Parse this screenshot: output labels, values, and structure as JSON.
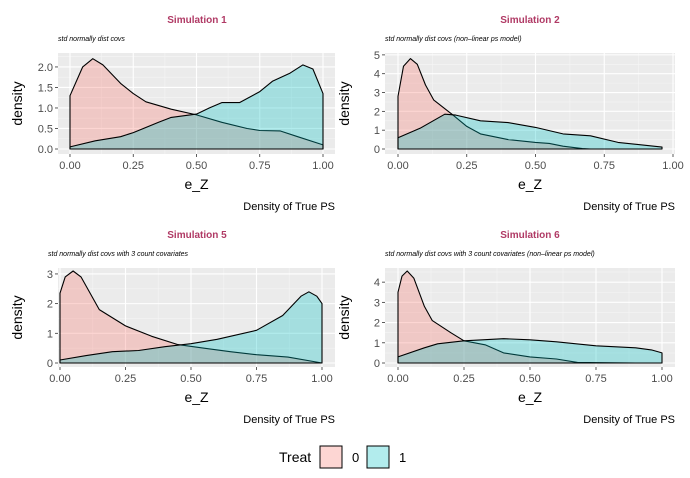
{
  "chart_data": [
    {
      "type": "area",
      "title": "Simulation 1",
      "subtitle": "std normally dist covs",
      "xlabel": "e_Z",
      "ylabel": "density",
      "caption": "Density of True PS",
      "xlim": [
        0,
        1
      ],
      "ylim": [
        0,
        2.34
      ],
      "xticks": [
        "0.00",
        "0.25",
        "0.50",
        "0.75",
        "1.00"
      ],
      "yticks": [
        "0.0",
        "0.5",
        "1.0",
        "1.5",
        "2.0"
      ],
      "ytick_values": [
        0,
        0.5,
        1,
        1.5,
        2
      ],
      "grid": true,
      "series": [
        {
          "name": "0",
          "x": [
            0,
            0.05,
            0.09,
            0.13,
            0.2,
            0.25,
            0.3,
            0.4,
            0.5,
            0.6,
            0.7,
            0.75,
            0.83,
            0.9,
            1.0
          ],
          "y": [
            1.3,
            2.0,
            2.2,
            2.05,
            1.6,
            1.35,
            1.15,
            0.97,
            0.83,
            0.65,
            0.5,
            0.45,
            0.44,
            0.3,
            0.1
          ]
        },
        {
          "name": "1",
          "x": [
            0,
            0.1,
            0.2,
            0.25,
            0.35,
            0.4,
            0.5,
            0.55,
            0.6,
            0.67,
            0.75,
            0.8,
            0.87,
            0.92,
            0.96,
            1.0
          ],
          "y": [
            0.05,
            0.2,
            0.3,
            0.4,
            0.65,
            0.77,
            0.85,
            1.0,
            1.13,
            1.13,
            1.4,
            1.65,
            1.85,
            2.05,
            1.95,
            1.35
          ]
        }
      ]
    },
    {
      "type": "area",
      "title": "Simulation 2",
      "subtitle": "std normally dist covs (non–linear ps model)",
      "xlabel": "e_Z",
      "ylabel": "density",
      "caption": "Density of True PS",
      "xlim": [
        0,
        1
      ],
      "ylim": [
        0,
        5.1
      ],
      "xticks": [
        "0.00",
        "0.25",
        "0.50",
        "0.75",
        "1.00"
      ],
      "yticks": [
        "0",
        "1",
        "2",
        "3",
        "4",
        "5"
      ],
      "ytick_values": [
        0,
        1,
        2,
        3,
        4,
        5
      ],
      "grid": true,
      "series": [
        {
          "name": "0",
          "x": [
            0,
            0.02,
            0.045,
            0.07,
            0.1,
            0.13,
            0.2,
            0.25,
            0.3,
            0.4,
            0.5,
            0.55,
            0.6,
            0.67,
            0.7
          ],
          "y": [
            2.8,
            4.4,
            4.8,
            4.5,
            3.4,
            2.6,
            1.8,
            1.2,
            0.8,
            0.5,
            0.35,
            0.3,
            0.15,
            0.02,
            0
          ]
        },
        {
          "name": "1",
          "x": [
            0,
            0.08,
            0.17,
            0.21,
            0.3,
            0.4,
            0.5,
            0.6,
            0.7,
            0.8,
            0.96
          ],
          "y": [
            0.6,
            1.1,
            1.85,
            1.8,
            1.5,
            1.4,
            1.15,
            0.8,
            0.7,
            0.35,
            0.1
          ]
        }
      ]
    },
    {
      "type": "area",
      "title": "Simulation 5",
      "subtitle": "std normally dist covs with 3 count covariates",
      "xlabel": "e_Z",
      "ylabel": "density",
      "caption": "Density of True PS",
      "xlim": [
        0,
        1
      ],
      "ylim": [
        0,
        3.2
      ],
      "xticks": [
        "0.00",
        "0.25",
        "0.50",
        "0.75",
        "1.00"
      ],
      "yticks": [
        "0",
        "1",
        "2",
        "3"
      ],
      "ytick_values": [
        0,
        1,
        2,
        3
      ],
      "grid": true,
      "series": [
        {
          "name": "0",
          "x": [
            0,
            0.02,
            0.05,
            0.08,
            0.15,
            0.25,
            0.35,
            0.45,
            0.55,
            0.65,
            0.75,
            0.87,
            1.0
          ],
          "y": [
            2.35,
            2.9,
            3.1,
            2.9,
            1.8,
            1.25,
            0.9,
            0.62,
            0.5,
            0.38,
            0.28,
            0.2,
            0
          ]
        },
        {
          "name": "1",
          "x": [
            0,
            0.1,
            0.2,
            0.3,
            0.4,
            0.5,
            0.6,
            0.75,
            0.85,
            0.92,
            0.95,
            0.98,
            1.0
          ],
          "y": [
            0.1,
            0.25,
            0.38,
            0.42,
            0.55,
            0.65,
            0.8,
            1.1,
            1.6,
            2.25,
            2.4,
            2.25,
            2.0
          ]
        }
      ]
    },
    {
      "type": "area",
      "title": "Simulation 6",
      "subtitle": "std normally dist covs with 3 count covariates (non–linear ps model)",
      "xlabel": "e_Z",
      "ylabel": "density",
      "caption": "Density of True PS",
      "xlim": [
        0,
        1
      ],
      "ylim": [
        0,
        4.7
      ],
      "xticks": [
        "0.00",
        "0.25",
        "0.50",
        "0.75",
        "1.00"
      ],
      "yticks": [
        "0",
        "1",
        "2",
        "3",
        "4"
      ],
      "ytick_values": [
        0,
        1,
        2,
        3,
        4
      ],
      "grid": true,
      "series": [
        {
          "name": "0",
          "x": [
            0,
            0.015,
            0.035,
            0.06,
            0.1,
            0.13,
            0.2,
            0.25,
            0.33,
            0.4,
            0.5,
            0.6,
            0.68,
            0.9,
            1.0
          ],
          "y": [
            3.5,
            4.3,
            4.55,
            4.2,
            2.8,
            2.1,
            1.5,
            1.1,
            0.9,
            0.5,
            0.3,
            0.2,
            0.03,
            0,
            0
          ]
        },
        {
          "name": "1",
          "x": [
            0,
            0.1,
            0.15,
            0.25,
            0.4,
            0.5,
            0.6,
            0.75,
            0.9,
            0.96,
            1.0
          ],
          "y": [
            0.3,
            0.75,
            0.95,
            1.1,
            1.2,
            1.15,
            1.05,
            0.85,
            0.75,
            0.65,
            0.5
          ]
        }
      ]
    }
  ],
  "legend": {
    "title": "Treat",
    "position": "bottom",
    "items": [
      {
        "label": "0",
        "color": "#F8766D"
      },
      {
        "label": "1",
        "color": "#00BFC4"
      }
    ]
  }
}
